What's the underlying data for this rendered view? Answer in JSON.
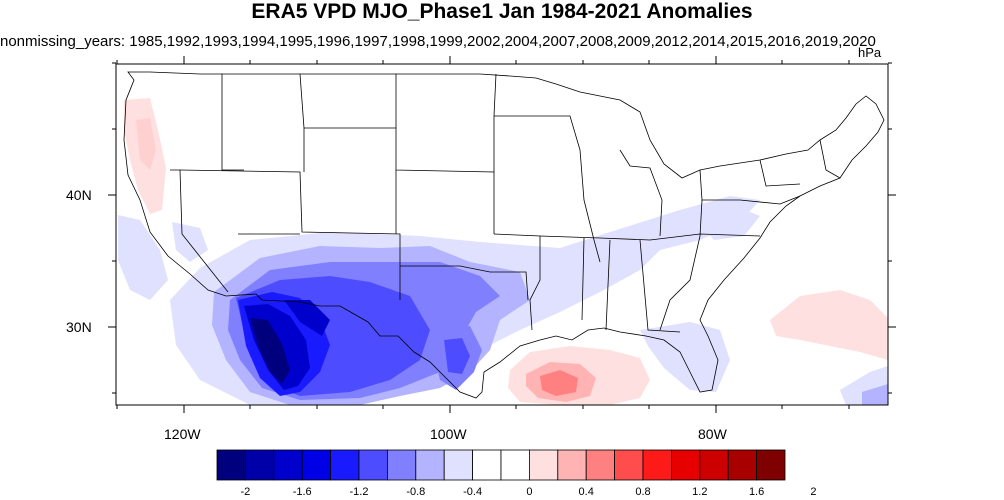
{
  "header": {
    "title": "ERA5 VPD MJO_Phase1 Jan 1984-2021 Anomalies",
    "subtitle": "nonmissing_years: 1985,1992,1993,1994,1995,1996,1997,1998,1999,2002,2004,2007,2008,2009,2012,2014,2015,2016,2019,2020",
    "units": "hPa"
  },
  "map": {
    "region": "Contiguous United States",
    "lat_labels": [
      "40N",
      "30N"
    ],
    "lon_labels": [
      "120W",
      "100W",
      "80W"
    ],
    "anomaly_regions": [
      {
        "name": "desert-southwest-strong-negative",
        "value": -1.8
      },
      {
        "name": "southern-plains-negative",
        "value": -0.8
      },
      {
        "name": "texas-gulf-coast-negative",
        "value": -0.6
      },
      {
        "name": "gulf-of-mexico-positive",
        "value": 0.8
      },
      {
        "name": "pacific-northwest-positive",
        "value": 0.4
      },
      {
        "name": "western-atlantic-positive",
        "value": 0.4
      },
      {
        "name": "southeast-weak-negative",
        "value": -0.2
      }
    ]
  },
  "colorbar": {
    "colors": [
      "#00007f",
      "#0000a8",
      "#0000cc",
      "#0000e6",
      "#1a1aff",
      "#4d4dff",
      "#8080ff",
      "#b3b3ff",
      "#e0e0ff",
      "#ffffff",
      "#ffffff",
      "#ffe0e0",
      "#ffb3b3",
      "#ff8080",
      "#ff4d4d",
      "#ff1a1a",
      "#e60000",
      "#cc0000",
      "#a80000",
      "#7f0000"
    ],
    "labels": [
      "-2",
      "-1.6",
      "-1.2",
      "-0.8",
      "-0.4",
      "0",
      "0.4",
      "0.8",
      "1.2",
      "1.6",
      "2"
    ]
  }
}
